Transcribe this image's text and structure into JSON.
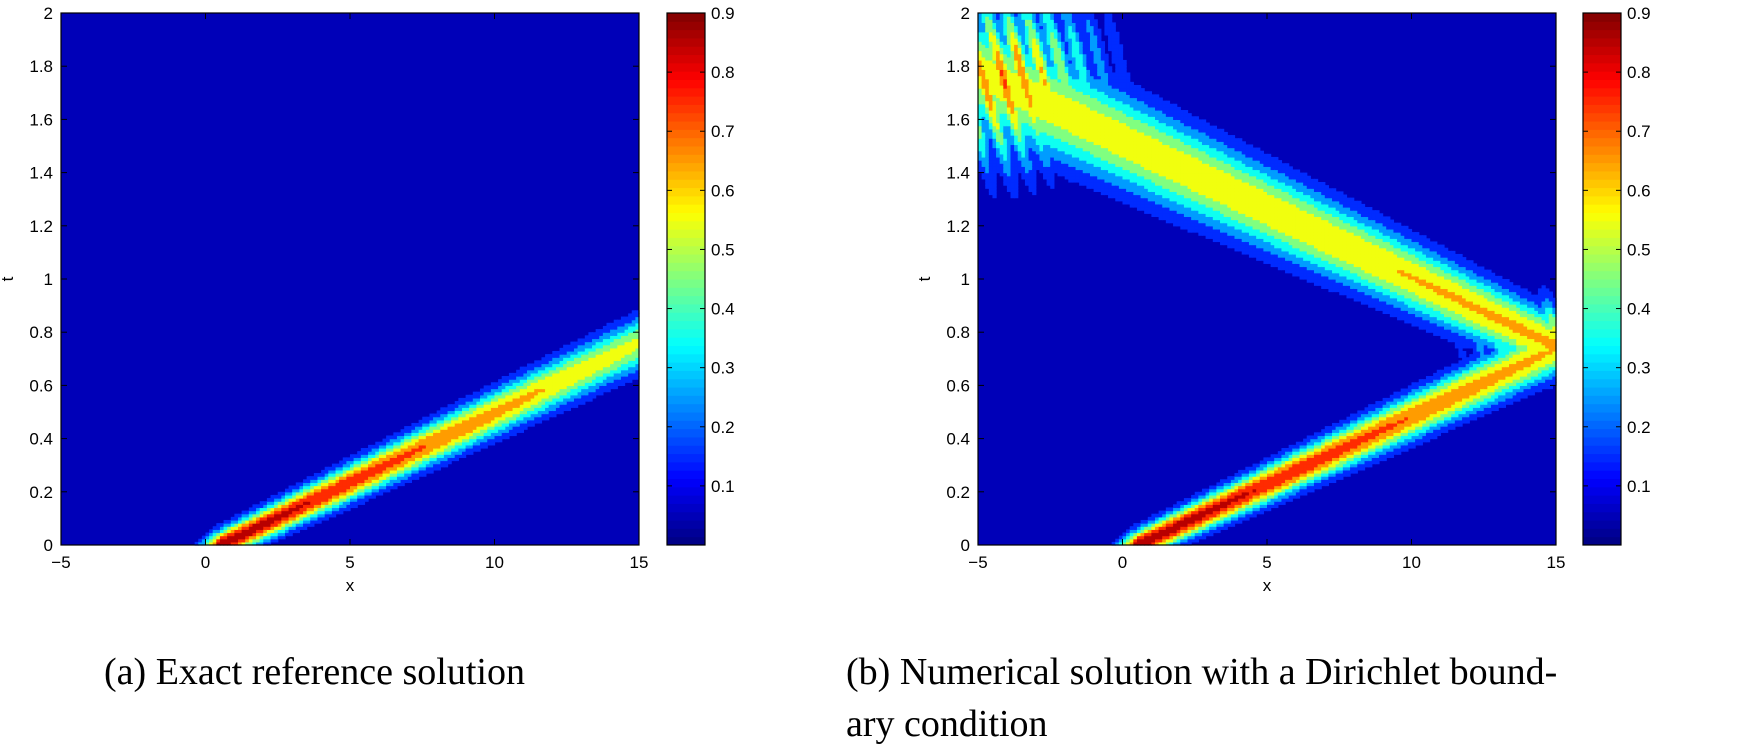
{
  "figure": {
    "captions": {
      "a_label": "(a)",
      "a_text": "Exact reference solution",
      "b_label": "(b)",
      "b_text_line1": "Numerical solution with a Dirichlet bound-",
      "b_text_line2": "ary condition"
    }
  },
  "chart_data": [
    {
      "type": "heatmap",
      "subtype": "filled-contour",
      "panel": "a",
      "xlabel": "x",
      "ylabel": "t",
      "xlim": [
        -5,
        15
      ],
      "ylim": [
        0,
        2
      ],
      "xticks": [
        -5,
        0,
        5,
        10,
        15
      ],
      "xtick_labels": [
        "−5",
        "0",
        "5",
        "10",
        "15"
      ],
      "yticks": [
        0,
        0.2,
        0.4,
        0.6,
        0.8,
        1,
        1.2,
        1.4,
        1.6,
        1.8,
        2
      ],
      "ytick_labels": [
        "0",
        "0.2",
        "0.4",
        "0.6",
        "0.8",
        "1",
        "1.2",
        "1.4",
        "1.6",
        "1.8",
        "2"
      ],
      "colorbar": {
        "range": [
          0,
          0.9
        ],
        "ticks": [
          0.1,
          0.2,
          0.3,
          0.4,
          0.5,
          0.6,
          0.7,
          0.8,
          0.9
        ],
        "tick_labels": [
          "0.1",
          "0.2",
          "0.3",
          "0.4",
          "0.5",
          "0.6",
          "0.7",
          "0.8",
          "0.9"
        ],
        "colormap": "jet"
      },
      "contour_levels": [
        0.1,
        0.2,
        0.3,
        0.4,
        0.5,
        0.6,
        0.7,
        0.8
      ],
      "features": [
        {
          "kind": "ridge",
          "from": [
            0.5,
            0.0
          ],
          "to": [
            15,
            0.76
          ],
          "peak_start": 0.88,
          "peak_end": 0.52,
          "half_width_t": 0.1,
          "sharpness": 1.0
        }
      ]
    },
    {
      "type": "heatmap",
      "subtype": "filled-contour",
      "panel": "b",
      "xlabel": "x",
      "ylabel": "t",
      "xlim": [
        -5,
        15
      ],
      "ylim": [
        0,
        2
      ],
      "xticks": [
        -5,
        0,
        5,
        10,
        15
      ],
      "xtick_labels": [
        "−5",
        "0",
        "5",
        "10",
        "15"
      ],
      "yticks": [
        0,
        0.2,
        0.4,
        0.6,
        0.8,
        1,
        1.2,
        1.4,
        1.6,
        1.8,
        2
      ],
      "ytick_labels": [
        "0",
        "0.2",
        "0.4",
        "0.6",
        "0.8",
        "1",
        "1.2",
        "1.4",
        "1.6",
        "1.8",
        "2"
      ],
      "colorbar": {
        "range": [
          0,
          0.9
        ],
        "ticks": [
          0.1,
          0.2,
          0.3,
          0.4,
          0.5,
          0.6,
          0.7,
          0.8,
          0.9
        ],
        "tick_labels": [
          "0.1",
          "0.2",
          "0.3",
          "0.4",
          "0.5",
          "0.6",
          "0.7",
          "0.8",
          "0.9"
        ],
        "colormap": "jet"
      },
      "contour_levels": [
        0.1,
        0.2,
        0.3,
        0.4,
        0.5,
        0.6,
        0.7,
        0.8
      ],
      "features": [
        {
          "kind": "ridge",
          "from": [
            0.5,
            0.0
          ],
          "to": [
            15,
            0.74
          ],
          "peak_start": 0.88,
          "peak_end": 0.6,
          "half_width_t": 0.1,
          "sharpness": 1.0
        },
        {
          "kind": "ridge",
          "from": [
            15,
            0.75
          ],
          "to": [
            -5,
            1.78
          ],
          "peak_start": 0.62,
          "peak_end": 0.55,
          "half_width_t": 0.2,
          "sharpness": 1.0
        },
        {
          "kind": "oscillation",
          "center": [
            14.5,
            0.78
          ],
          "radius_x": 2.5,
          "radius_t": 0.16,
          "amplitude": 0.45
        },
        {
          "kind": "oscillation",
          "center": [
            -4,
            1.75
          ],
          "radius_x": 3.5,
          "radius_t": 0.35,
          "amplitude": 0.55
        }
      ]
    }
  ]
}
